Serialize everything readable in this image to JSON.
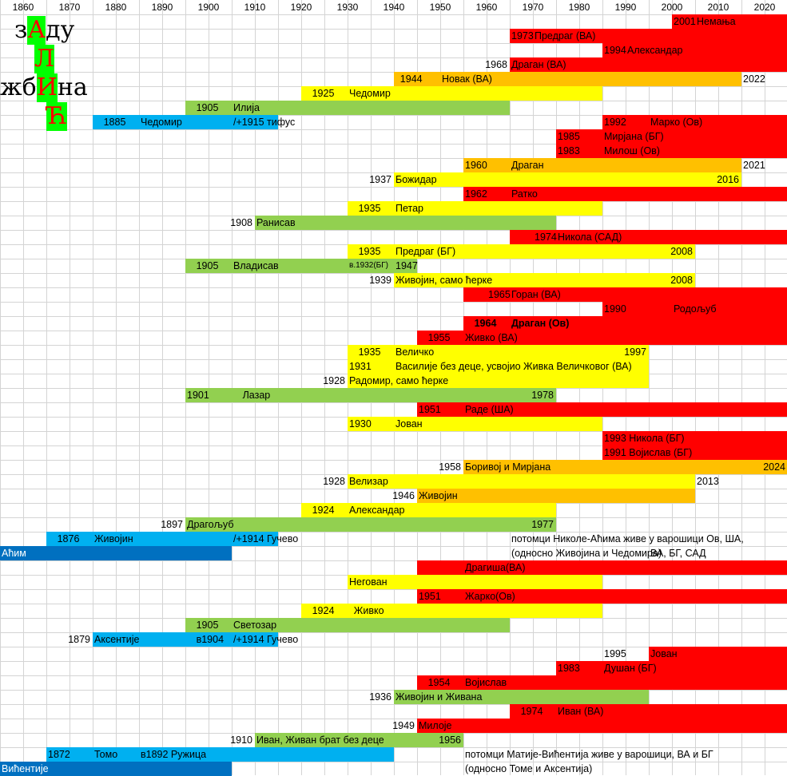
{
  "colors": {
    "red": "#ff0000",
    "orange": "#ffc000",
    "yellow": "#ffff00",
    "green": "#92d050",
    "lightblue": "#00b0f0",
    "darkblue": "#0070c0",
    "logo_highlight": "#00ff00",
    "gridline": "#d4d4d4"
  },
  "logo": {
    "line1_pre": "з",
    "line1_hl": "А",
    "line1_post": "ду",
    "line2_hl": "Л",
    "line3_pre": "жб",
    "line3_hl": "И",
    "line3_post": "на",
    "line4_hl": "Ћ"
  },
  "chart_data": {
    "type": "timeline",
    "x_axis": {
      "min": 1855,
      "max": 2025,
      "ticks": [
        "1860",
        "1870",
        "1880",
        "1890",
        "1900",
        "1910",
        "1920",
        "1930",
        "1940",
        "1950",
        "1960",
        "1970",
        "1980",
        "1990",
        "2000",
        "2010",
        "2020"
      ]
    },
    "grid": true,
    "bars": [
      {
        "row": 1,
        "start": 2000,
        "end": 2025,
        "color": "red"
      },
      {
        "row": 2,
        "start": 1965,
        "end": 2025,
        "color": "red"
      },
      {
        "row": 3,
        "start": 1985,
        "end": 2025,
        "color": "red"
      },
      {
        "row": 4,
        "start": 1965,
        "end": 2025,
        "color": "red"
      },
      {
        "row": 5,
        "start": 1940,
        "end": 2015,
        "color": "orange"
      },
      {
        "row": 6,
        "start": 1920,
        "end": 1985,
        "color": "yellow"
      },
      {
        "row": 7,
        "start": 1895,
        "end": 1965,
        "color": "green"
      },
      {
        "row": 8,
        "start": 1875,
        "end": 1915,
        "color": "lightblue"
      },
      {
        "row": 8,
        "start": 1985,
        "end": 2025,
        "color": "red"
      },
      {
        "row": 9,
        "start": 1975,
        "end": 2025,
        "color": "red"
      },
      {
        "row": 10,
        "start": 1975,
        "end": 2025,
        "color": "red"
      },
      {
        "row": 11,
        "start": 1955,
        "end": 2015,
        "color": "orange"
      },
      {
        "row": 12,
        "start": 1940,
        "end": 2015,
        "color": "yellow"
      },
      {
        "row": 13,
        "start": 1955,
        "end": 2025,
        "color": "red"
      },
      {
        "row": 14,
        "start": 1930,
        "end": 1985,
        "color": "yellow"
      },
      {
        "row": 15,
        "start": 1910,
        "end": 1975,
        "color": "green"
      },
      {
        "row": 16,
        "start": 1965,
        "end": 2025,
        "color": "red"
      },
      {
        "row": 17,
        "start": 1930,
        "end": 2005,
        "color": "yellow"
      },
      {
        "row": 18,
        "start": 1895,
        "end": 1945,
        "color": "green"
      },
      {
        "row": 19,
        "start": 1940,
        "end": 2005,
        "color": "yellow"
      },
      {
        "row": 20,
        "start": 1955,
        "end": 2025,
        "color": "red"
      },
      {
        "row": 21,
        "start": 1985,
        "end": 2025,
        "color": "red"
      },
      {
        "row": 22,
        "start": 1955,
        "end": 2025,
        "color": "red"
      },
      {
        "row": 23,
        "start": 1945,
        "end": 2025,
        "color": "red"
      },
      {
        "row": 24,
        "start": 1930,
        "end": 1995,
        "color": "yellow"
      },
      {
        "row": 25,
        "start": 1930,
        "end": 1995,
        "color": "yellow"
      },
      {
        "row": 26,
        "start": 1930,
        "end": 1995,
        "color": "yellow"
      },
      {
        "row": 27,
        "start": 1895,
        "end": 1975,
        "color": "green"
      },
      {
        "row": 28,
        "start": 1945,
        "end": 2025,
        "color": "red"
      },
      {
        "row": 29,
        "start": 1930,
        "end": 1985,
        "color": "yellow"
      },
      {
        "row": 30,
        "start": 1985,
        "end": 2025,
        "color": "red"
      },
      {
        "row": 31,
        "start": 1985,
        "end": 2025,
        "color": "red"
      },
      {
        "row": 32,
        "start": 1955,
        "end": 2025,
        "color": "orange"
      },
      {
        "row": 33,
        "start": 1930,
        "end": 2005,
        "color": "yellow"
      },
      {
        "row": 34,
        "start": 1945,
        "end": 2005,
        "color": "orange"
      },
      {
        "row": 35,
        "start": 1920,
        "end": 1975,
        "color": "yellow"
      },
      {
        "row": 36,
        "start": 1895,
        "end": 1975,
        "color": "green"
      },
      {
        "row": 37,
        "start": 1865,
        "end": 1915,
        "color": "lightblue"
      },
      {
        "row": 38,
        "start": 1855,
        "end": 1905,
        "color": "darkblue"
      },
      {
        "row": 39,
        "start": 1945,
        "end": 2025,
        "color": "red"
      },
      {
        "row": 40,
        "start": 1930,
        "end": 1985,
        "color": "yellow"
      },
      {
        "row": 41,
        "start": 1945,
        "end": 2025,
        "color": "red"
      },
      {
        "row": 42,
        "start": 1920,
        "end": 1985,
        "color": "yellow"
      },
      {
        "row": 43,
        "start": 1895,
        "end": 1965,
        "color": "green"
      },
      {
        "row": 44,
        "start": 1875,
        "end": 1915,
        "color": "lightblue"
      },
      {
        "row": 45,
        "start": 1995,
        "end": 2025,
        "color": "red"
      },
      {
        "row": 46,
        "start": 1975,
        "end": 2025,
        "color": "red"
      },
      {
        "row": 47,
        "start": 1945,
        "end": 2025,
        "color": "red"
      },
      {
        "row": 48,
        "start": 1940,
        "end": 1995,
        "color": "green"
      },
      {
        "row": 49,
        "start": 1965,
        "end": 2025,
        "color": "red"
      },
      {
        "row": 50,
        "start": 1945,
        "end": 2025,
        "color": "red"
      },
      {
        "row": 51,
        "start": 1910,
        "end": 1955,
        "color": "green"
      },
      {
        "row": 52,
        "start": 1865,
        "end": 1940,
        "color": "lightblue"
      },
      {
        "row": 53,
        "start": 1855,
        "end": 1905,
        "color": "darkblue"
      }
    ],
    "labels": [
      {
        "row": 1,
        "x": 2000,
        "text": "2001"
      },
      {
        "row": 1,
        "x": 2005,
        "text": "Немања"
      },
      {
        "row": 2,
        "x": 1965,
        "text": "1973"
      },
      {
        "row": 2,
        "x": 1970,
        "text": "Предраг (ВА)"
      },
      {
        "row": 3,
        "x": 1985,
        "text": "1994"
      },
      {
        "row": 3,
        "x": 1990,
        "text": "Александар"
      },
      {
        "row": 4,
        "x": 1965,
        "text": "1968",
        "align": "right"
      },
      {
        "row": 4,
        "x": 1965,
        "text": "Драган (ВА)"
      },
      {
        "row": 5,
        "x": 1941,
        "text": "1944"
      },
      {
        "row": 5,
        "x": 1950,
        "text": "Новак (ВА)"
      },
      {
        "row": 5,
        "x": 2015,
        "text": "2022"
      },
      {
        "row": 6,
        "x": 1922,
        "text": "1925"
      },
      {
        "row": 6,
        "x": 1930,
        "text": "Чедомир"
      },
      {
        "row": 7,
        "x": 1897,
        "text": "1905"
      },
      {
        "row": 7,
        "x": 1905,
        "text": "Илија"
      },
      {
        "row": 8,
        "x": 1877,
        "text": "1885"
      },
      {
        "row": 8,
        "x": 1885,
        "text": "Чедомир"
      },
      {
        "row": 8,
        "x": 1905,
        "text": "/+1915 тифус"
      },
      {
        "row": 8,
        "x": 1985,
        "text": "1992"
      },
      {
        "row": 8,
        "x": 1995,
        "text": "Марко (Ов)"
      },
      {
        "row": 9,
        "x": 1975,
        "text": "1985"
      },
      {
        "row": 9,
        "x": 1985,
        "text": "Мирјана (БГ)"
      },
      {
        "row": 10,
        "x": 1975,
        "text": "1983"
      },
      {
        "row": 10,
        "x": 1985,
        "text": "Милош (Ов)"
      },
      {
        "row": 11,
        "x": 1955,
        "text": "1960"
      },
      {
        "row": 11,
        "x": 1965,
        "text": "Драган"
      },
      {
        "row": 11,
        "x": 2015,
        "text": "2021"
      },
      {
        "row": 12,
        "x": 1940,
        "text": "1937",
        "align": "right"
      },
      {
        "row": 12,
        "x": 1940,
        "text": "Божидар"
      },
      {
        "row": 12,
        "x": 2015,
        "text": "2016",
        "align": "right"
      },
      {
        "row": 13,
        "x": 1955,
        "text": "1962"
      },
      {
        "row": 13,
        "x": 1965,
        "text": "Ратко"
      },
      {
        "row": 14,
        "x": 1932,
        "text": "1935"
      },
      {
        "row": 14,
        "x": 1940,
        "text": "Петар"
      },
      {
        "row": 15,
        "x": 1910,
        "text": "1908",
        "align": "right"
      },
      {
        "row": 15,
        "x": 1910,
        "text": "Ранисав"
      },
      {
        "row": 16,
        "x": 1970,
        "text": "1974"
      },
      {
        "row": 16,
        "x": 1975,
        "text": "Никола (САД)"
      },
      {
        "row": 17,
        "x": 1932,
        "text": "1935"
      },
      {
        "row": 17,
        "x": 1940,
        "text": "Предраг (БГ)"
      },
      {
        "row": 17,
        "x": 2005,
        "text": "2008",
        "align": "right"
      },
      {
        "row": 18,
        "x": 1897,
        "text": "1905"
      },
      {
        "row": 18,
        "x": 1905,
        "text": "Владисав"
      },
      {
        "row": 18,
        "x": 1930,
        "text": "в.1932(БГ)",
        "small": true
      },
      {
        "row": 18,
        "x": 1940,
        "text": "1947"
      },
      {
        "row": 19,
        "x": 1940,
        "text": "1939",
        "align": "right"
      },
      {
        "row": 19,
        "x": 1940,
        "text": "Живојин, само ћерке"
      },
      {
        "row": 19,
        "x": 2005,
        "text": "2008",
        "align": "right"
      },
      {
        "row": 20,
        "x": 1960,
        "text": "1965"
      },
      {
        "row": 20,
        "x": 1965,
        "text": "Горан (ВА)"
      },
      {
        "row": 21,
        "x": 1985,
        "text": "1990"
      },
      {
        "row": 21,
        "x": 2000,
        "text": "Родољуб"
      },
      {
        "row": 22,
        "x": 1957,
        "text": "1964",
        "bold": true
      },
      {
        "row": 22,
        "x": 1965,
        "text": "Драган (Ов)",
        "bold": true
      },
      {
        "row": 23,
        "x": 1947,
        "text": "1955"
      },
      {
        "row": 23,
        "x": 1955,
        "text": "Живко (ВА)"
      },
      {
        "row": 24,
        "x": 1932,
        "text": "1935"
      },
      {
        "row": 24,
        "x": 1940,
        "text": "Величко"
      },
      {
        "row": 24,
        "x": 1995,
        "text": "1997",
        "align": "right"
      },
      {
        "row": 25,
        "x": 1930,
        "text": "1931"
      },
      {
        "row": 25,
        "x": 1940,
        "text": "Василије без деце, усвојио Живка Величковог (ВА)"
      },
      {
        "row": 26,
        "x": 1930,
        "text": "1928",
        "align": "right"
      },
      {
        "row": 26,
        "x": 1930,
        "text": "Радомир, само ћерке"
      },
      {
        "row": 27,
        "x": 1895,
        "text": "1901"
      },
      {
        "row": 27,
        "x": 1907,
        "text": "Лазар"
      },
      {
        "row": 27,
        "x": 1975,
        "text": "1978",
        "align": "right"
      },
      {
        "row": 28,
        "x": 1945,
        "text": "1951"
      },
      {
        "row": 28,
        "x": 1955,
        "text": "Раде (ША)"
      },
      {
        "row": 29,
        "x": 1930,
        "text": "1930"
      },
      {
        "row": 29,
        "x": 1940,
        "text": "Јован"
      },
      {
        "row": 30,
        "x": 1985,
        "text": "1993 Никола (БГ)"
      },
      {
        "row": 31,
        "x": 1985,
        "text": "1991 Војислав (БГ)"
      },
      {
        "row": 32,
        "x": 1955,
        "text": "1958",
        "align": "right"
      },
      {
        "row": 32,
        "x": 1955,
        "text": "Боривој и Мирјана"
      },
      {
        "row": 32,
        "x": 2025,
        "text": "2024",
        "align": "right"
      },
      {
        "row": 33,
        "x": 1930,
        "text": "1928",
        "align": "right"
      },
      {
        "row": 33,
        "x": 1930,
        "text": "Велизар"
      },
      {
        "row": 33,
        "x": 2005,
        "text": "2013"
      },
      {
        "row": 34,
        "x": 1945,
        "text": "1946",
        "align": "right"
      },
      {
        "row": 34,
        "x": 1945,
        "text": "Живојин"
      },
      {
        "row": 35,
        "x": 1922,
        "text": "1924"
      },
      {
        "row": 35,
        "x": 1930,
        "text": "Александар"
      },
      {
        "row": 36,
        "x": 1895,
        "text": "1897",
        "align": "right"
      },
      {
        "row": 36,
        "x": 1895,
        "text": "Драгољуб"
      },
      {
        "row": 36,
        "x": 1975,
        "text": "1977",
        "align": "right"
      },
      {
        "row": 37,
        "x": 1867,
        "text": "1876"
      },
      {
        "row": 37,
        "x": 1875,
        "text": "Живојин"
      },
      {
        "row": 37,
        "x": 1905,
        "text": "/+1914 Гучево"
      },
      {
        "row": 37,
        "x": 1965,
        "text": "потомци Николе-Аћима живе у варошици Ов, ША,"
      },
      {
        "row": 38,
        "x": 1855,
        "text": "Аћим",
        "white": true
      },
      {
        "row": 38,
        "x": 1965,
        "text": "(односно Живојина и Чедомира)"
      },
      {
        "row": 38,
        "x": 1995,
        "text": "ВА, БГ, САД"
      },
      {
        "row": 39,
        "x": 1955,
        "text": "Драгиша(ВА)"
      },
      {
        "row": 40,
        "x": 1930,
        "text": "Негован"
      },
      {
        "row": 41,
        "x": 1945,
        "text": "1951"
      },
      {
        "row": 41,
        "x": 1955,
        "text": "Жарко(Ов)"
      },
      {
        "row": 42,
        "x": 1922,
        "text": "1924"
      },
      {
        "row": 42,
        "x": 1931,
        "text": "Живко"
      },
      {
        "row": 43,
        "x": 1897,
        "text": "1905"
      },
      {
        "row": 43,
        "x": 1905,
        "text": "Светозар"
      },
      {
        "row": 44,
        "x": 1875,
        "text": "1879",
        "align": "right"
      },
      {
        "row": 44,
        "x": 1875,
        "text": "Аксентије"
      },
      {
        "row": 44,
        "x": 1897,
        "text": "в1904"
      },
      {
        "row": 44,
        "x": 1905,
        "text": "/+1914 Гучево"
      },
      {
        "row": 45,
        "x": 1985,
        "text": "1995"
      },
      {
        "row": 45,
        "x": 1995,
        "text": "Јован"
      },
      {
        "row": 46,
        "x": 1975,
        "text": "1983"
      },
      {
        "row": 46,
        "x": 1985,
        "text": "Душан (БГ)"
      },
      {
        "row": 47,
        "x": 1947,
        "text": "1954"
      },
      {
        "row": 47,
        "x": 1955,
        "text": "Војислав"
      },
      {
        "row": 48,
        "x": 1940,
        "text": "1936",
        "align": "right"
      },
      {
        "row": 48,
        "x": 1940,
        "text": "Живојин и Живана"
      },
      {
        "row": 49,
        "x": 1967,
        "text": "1974"
      },
      {
        "row": 49,
        "x": 1975,
        "text": "Иван (ВА)"
      },
      {
        "row": 50,
        "x": 1945,
        "text": "1949",
        "align": "right"
      },
      {
        "row": 50,
        "x": 1945,
        "text": "Милоје"
      },
      {
        "row": 51,
        "x": 1910,
        "text": "1910",
        "align": "right"
      },
      {
        "row": 51,
        "x": 1910,
        "text": "Иван, Живан брат без деце"
      },
      {
        "row": 51,
        "x": 1955,
        "text": "1956",
        "align": "right"
      },
      {
        "row": 52,
        "x": 1865,
        "text": "1872"
      },
      {
        "row": 52,
        "x": 1875,
        "text": "Томо"
      },
      {
        "row": 52,
        "x": 1885,
        "text": "в1892 Ружица"
      },
      {
        "row": 52,
        "x": 1955,
        "text": "потомци Матије-Вићентија живе у варошици, ВА и БГ"
      },
      {
        "row": 53,
        "x": 1855,
        "text": "Вићентије",
        "white": true
      },
      {
        "row": 53,
        "x": 1955,
        "text": "(односно Томе и Аксентија)"
      }
    ]
  }
}
